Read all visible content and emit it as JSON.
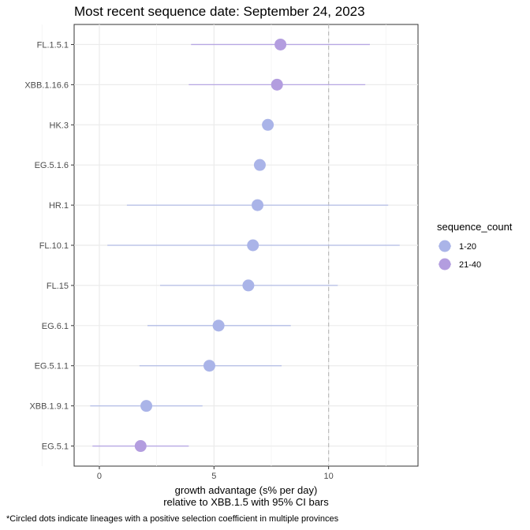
{
  "chart_data": {
    "type": "scatter",
    "title": "Most recent sequence date: September 24, 2023",
    "xlabel_line1": "growth advantage (s% per day)",
    "xlabel_line2": "relative to  XBB.1.5  with 95% CI bars",
    "caption": "*Circled dots indicate lineages with a positive selection coefficient in multiple provinces",
    "xlim": [
      -1.1,
      13.9
    ],
    "x_ticks": [
      0,
      5,
      10
    ],
    "reference_line_x": 10,
    "grid": true,
    "legend": {
      "title": "sequence_count",
      "position": "right",
      "entries": [
        {
          "label": "1-20",
          "color": "#aab4e8"
        },
        {
          "label": "21-40",
          "color": "#b39ddf"
        }
      ]
    },
    "series": [
      {
        "lineage": "FL.1.5.1",
        "estimate": 7.9,
        "ci_low": 4.0,
        "ci_high": 11.8,
        "sequence_count": "21-40"
      },
      {
        "lineage": "XBB.1.16.6",
        "estimate": 7.75,
        "ci_low": 3.9,
        "ci_high": 11.6,
        "sequence_count": "21-40"
      },
      {
        "lineage": "HK.3",
        "estimate": 7.35,
        "ci_low": null,
        "ci_high": null,
        "sequence_count": "1-20"
      },
      {
        "lineage": "EG.5.1.6",
        "estimate": 7.0,
        "ci_low": null,
        "ci_high": null,
        "sequence_count": "1-20"
      },
      {
        "lineage": "HR.1",
        "estimate": 6.9,
        "ci_low": 1.2,
        "ci_high": 12.6,
        "sequence_count": "1-20"
      },
      {
        "lineage": "FL.10.1",
        "estimate": 6.7,
        "ci_low": 0.35,
        "ci_high": 13.1,
        "sequence_count": "1-20"
      },
      {
        "lineage": "FL.15",
        "estimate": 6.5,
        "ci_low": 2.65,
        "ci_high": 10.4,
        "sequence_count": "1-20"
      },
      {
        "lineage": "EG.6.1",
        "estimate": 5.2,
        "ci_low": 2.1,
        "ci_high": 8.35,
        "sequence_count": "1-20"
      },
      {
        "lineage": "EG.5.1.1",
        "estimate": 4.8,
        "ci_low": 1.75,
        "ci_high": 7.95,
        "sequence_count": "1-20"
      },
      {
        "lineage": "XBB.1.9.1",
        "estimate": 2.05,
        "ci_low": -0.4,
        "ci_high": 4.5,
        "sequence_count": "1-20"
      },
      {
        "lineage": "EG.5.1",
        "estimate": 1.8,
        "ci_low": -0.3,
        "ci_high": 3.9,
        "sequence_count": "21-40"
      }
    ]
  }
}
